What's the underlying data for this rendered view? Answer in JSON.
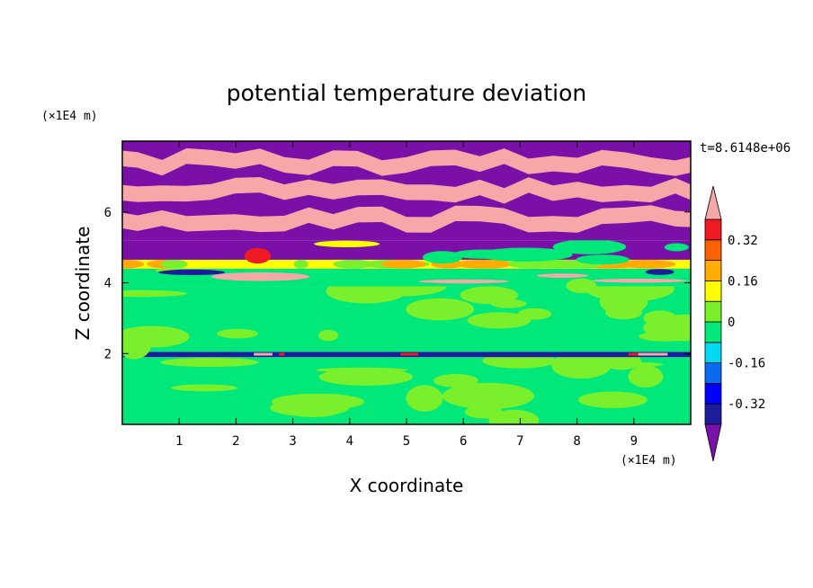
{
  "chart_data": {
    "type": "heatmap",
    "title": "potential temperature deviation",
    "xlabel": "X coordinate",
    "ylabel": "Z coordinate",
    "x_unit": "(×1E4 m)",
    "y_unit": "(×1E4 m)",
    "time_label": "t=8.6148e+06",
    "xlim": [
      0,
      10
    ],
    "ylim": [
      0,
      8
    ],
    "x_ticks": [
      "1",
      "2",
      "3",
      "4",
      "5",
      "6",
      "7",
      "8",
      "9"
    ],
    "y_ticks": [
      "2",
      "4",
      "6"
    ],
    "colorbar": {
      "tick_labels": [
        "0.32",
        "0.16",
        "0",
        "-0.16",
        "-0.32"
      ],
      "levels": [
        -0.4,
        -0.32,
        -0.24,
        -0.16,
        -0.08,
        0,
        0.08,
        0.16,
        0.24,
        0.32,
        0.4
      ],
      "colors_bottom_to_top": [
        "#7a10a8",
        "#1d1d9c",
        "#0000ff",
        "#0b6bef",
        "#00d9f1",
        "#00e87a",
        "#7af02c",
        "#ffff00",
        "#ffab00",
        "#ff6100",
        "#ee1b24",
        "#f6a8a8"
      ]
    },
    "bands_bottom_to_top": [
      {
        "z": [
          0,
          1.9
        ],
        "pattern": "mix",
        "colors": [
          "#00e87a",
          "#7af02c"
        ]
      },
      {
        "z": [
          1.9,
          2.05
        ],
        "pattern": "line",
        "colors": [
          "#1d1d9c",
          "#f6a8a8",
          "#ee1b24"
        ]
      },
      {
        "z": [
          2.05,
          3.9
        ],
        "pattern": "mix",
        "colors": [
          "#00e87a",
          "#7af02c"
        ]
      },
      {
        "z": [
          3.9,
          4.4
        ],
        "pattern": "mix",
        "colors": [
          "#00e87a",
          "#7af02c",
          "#1d1d9c",
          "#f6a8a8"
        ]
      },
      {
        "z": [
          4.4,
          4.65
        ],
        "pattern": "solid",
        "colors": [
          "#ffff00",
          "#7af02c",
          "#ffab00"
        ]
      },
      {
        "z": [
          4.65,
          5.2
        ],
        "pattern": "mix",
        "colors": [
          "#7a10a8",
          "#f6a8a8",
          "#ee1b24",
          "#ffff00",
          "#00d9f1",
          "#00e87a"
        ]
      },
      {
        "z": [
          5.2,
          8.0
        ],
        "pattern": "stripes",
        "colors": [
          "#7a10a8",
          "#f6a8a8"
        ]
      }
    ]
  },
  "colors": {
    "frame": "#000000",
    "background": "#ffffff"
  }
}
